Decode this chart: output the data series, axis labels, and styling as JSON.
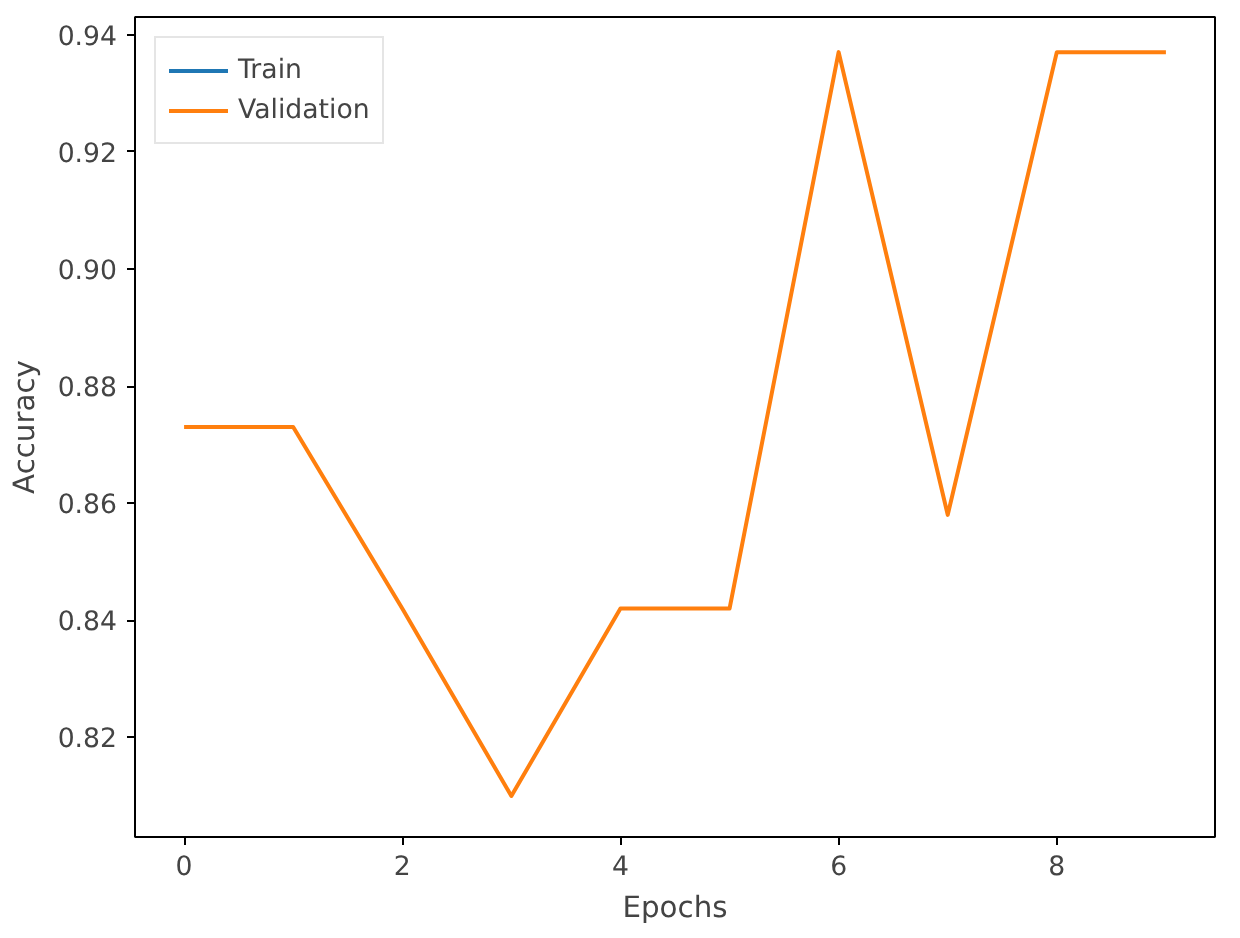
{
  "chart_data": {
    "type": "line",
    "xlabel": "Epochs",
    "ylabel": "Accuracy",
    "x": [
      0,
      1,
      2,
      3,
      4,
      5,
      6,
      7,
      8,
      9
    ],
    "series": [
      {
        "name": "Train",
        "color": "#1f77b4",
        "values": [
          null,
          null,
          null,
          null,
          null,
          null,
          null,
          null,
          null,
          null
        ]
      },
      {
        "name": "Validation",
        "color": "#ff7f0e",
        "values": [
          0.873,
          0.873,
          0.842,
          0.81,
          0.842,
          0.842,
          0.937,
          0.858,
          0.937,
          0.937
        ]
      }
    ],
    "xlim": [
      -0.45,
      9.45
    ],
    "ylim": [
      0.803,
      0.943
    ],
    "xticks": [
      0,
      2,
      4,
      6,
      8
    ],
    "yticks": [
      {
        "value": 0.82,
        "label": "0.82"
      },
      {
        "value": 0.84,
        "label": "0.84"
      },
      {
        "value": 0.86,
        "label": "0.86"
      },
      {
        "value": 0.88,
        "label": "0.88"
      },
      {
        "value": 0.9,
        "label": "0.90"
      },
      {
        "value": 0.92,
        "label": "0.92"
      },
      {
        "value": 0.94,
        "label": "0.94"
      }
    ],
    "legend": "top left",
    "grid": false,
    "line_style": "solid"
  }
}
